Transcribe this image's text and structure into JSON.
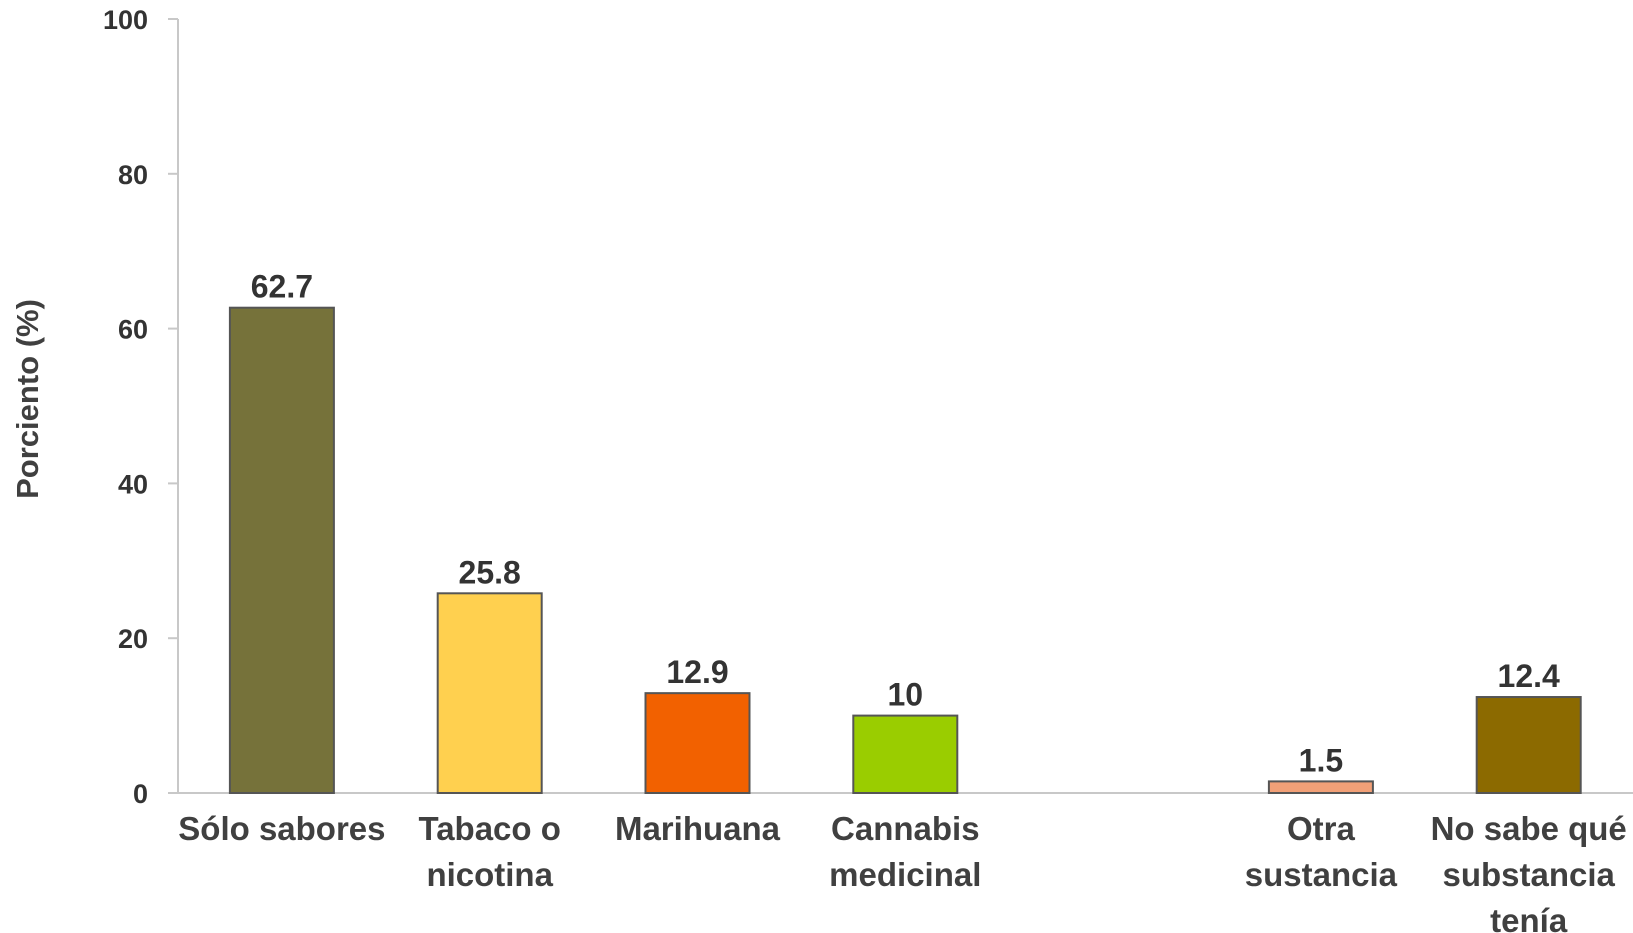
{
  "chart_data": {
    "type": "bar",
    "title": "",
    "xlabel": "",
    "ylabel": "Porciento (%)",
    "ylim": [
      0,
      100
    ],
    "yticks": [
      "0",
      "20",
      "40",
      "60",
      "80",
      "100"
    ],
    "grid": false,
    "legend": "none",
    "categories": [
      [
        "Sólo sabores"
      ],
      [
        "Tabaco o",
        "nicotina"
      ],
      [
        "Marihuana"
      ],
      [
        "Cannabis",
        "medicinal"
      ],
      [
        "Otra",
        "sustancia"
      ],
      [
        "No sabe qué",
        "substancia",
        "tenía"
      ]
    ],
    "values": [
      62.7,
      25.8,
      12.9,
      10,
      1.5,
      12.4
    ],
    "value_labels": [
      "62.7",
      "25.8",
      "12.9",
      "10",
      "1.5",
      "12.4"
    ],
    "colors": [
      "#76723a",
      "#ffd04f",
      "#f26100",
      "#9acd00",
      "#f2a077",
      "#8c6a00"
    ],
    "group_gap_after_index": 3
  }
}
